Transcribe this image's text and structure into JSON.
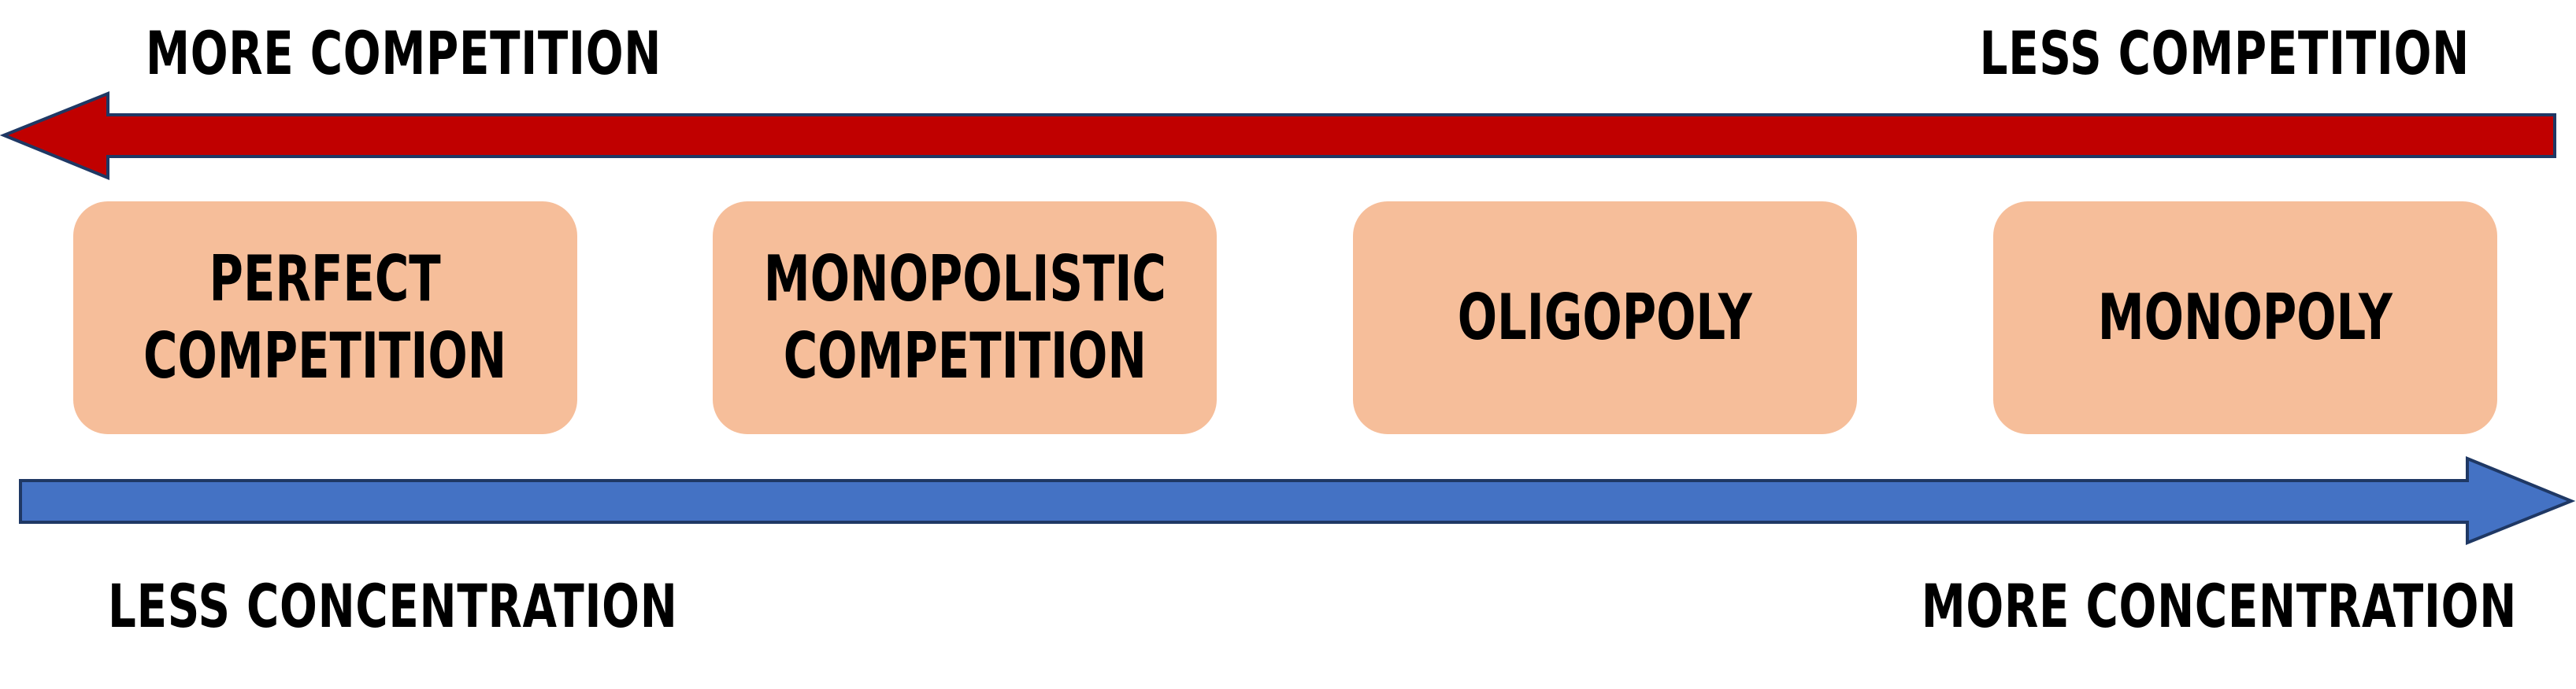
{
  "top_axis": {
    "left_label": "MORE COMPETITION",
    "right_label": "LESS COMPETITION",
    "direction": "left",
    "color": "#c00000",
    "stroke": "#1f3864"
  },
  "bottom_axis": {
    "left_label": "LESS CONCENTRATION",
    "right_label": "MORE CONCENTRATION",
    "direction": "right",
    "color": "#4472c4",
    "stroke": "#1f3864"
  },
  "boxes": [
    {
      "line1": "PERFECT",
      "line2": "COMPETITION"
    },
    {
      "line1": "MONOPOLISTIC",
      "line2": "COMPETITION"
    },
    {
      "line1": "OLIGOPOLY",
      "line2": ""
    },
    {
      "line1": "MONOPOLY",
      "line2": ""
    }
  ],
  "box_color": "#f6be9a"
}
